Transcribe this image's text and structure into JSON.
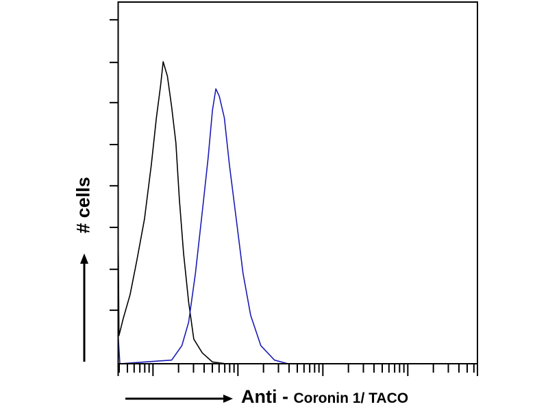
{
  "chart_data": {
    "type": "line",
    "title": "",
    "xlabel_main": "Anti",
    "xlabel_dash": " - ",
    "xlabel_rest": "Coronin 1/ TACO",
    "ylabel": "# cells",
    "x_scale": "log",
    "xlim_log10": [
      0.59,
      4.82
    ],
    "ylim": [
      0,
      100
    ],
    "y_ticks": [
      14.8,
      26.1,
      37.7,
      49.2,
      60.6,
      72.2,
      83.3,
      95.1
    ],
    "grid": false,
    "legend": "none",
    "series": [
      {
        "color": "#000000",
        "points": [
          [
            0.59,
            36.7
          ],
          [
            0.6,
            7.8
          ],
          [
            0.65,
            12.5
          ],
          [
            0.73,
            19.1
          ],
          [
            0.81,
            28.6
          ],
          [
            0.9,
            40
          ],
          [
            0.98,
            55
          ],
          [
            1.04,
            68
          ],
          [
            1.09,
            77
          ],
          [
            1.12,
            83.5
          ],
          [
            1.17,
            79.5
          ],
          [
            1.22,
            71
          ],
          [
            1.27,
            61
          ],
          [
            1.31,
            45.6
          ],
          [
            1.36,
            30.5
          ],
          [
            1.42,
            17
          ],
          [
            1.48,
            6.8
          ],
          [
            1.58,
            3
          ],
          [
            1.7,
            0.5
          ],
          [
            1.86,
            0
          ]
        ]
      },
      {
        "color": "#1a1ab4",
        "points": [
          [
            0.59,
            7.8
          ],
          [
            0.61,
            0
          ],
          [
            0.9,
            0.5
          ],
          [
            1.22,
            1
          ],
          [
            1.34,
            5
          ],
          [
            1.42,
            11.5
          ],
          [
            1.5,
            25
          ],
          [
            1.58,
            42
          ],
          [
            1.65,
            57
          ],
          [
            1.7,
            70
          ],
          [
            1.74,
            76
          ],
          [
            1.78,
            74
          ],
          [
            1.84,
            68
          ],
          [
            1.9,
            55
          ],
          [
            1.98,
            40
          ],
          [
            2.06,
            25
          ],
          [
            2.15,
            13.4
          ],
          [
            2.27,
            5
          ],
          [
            2.43,
            1
          ],
          [
            2.59,
            0
          ]
        ]
      }
    ]
  }
}
